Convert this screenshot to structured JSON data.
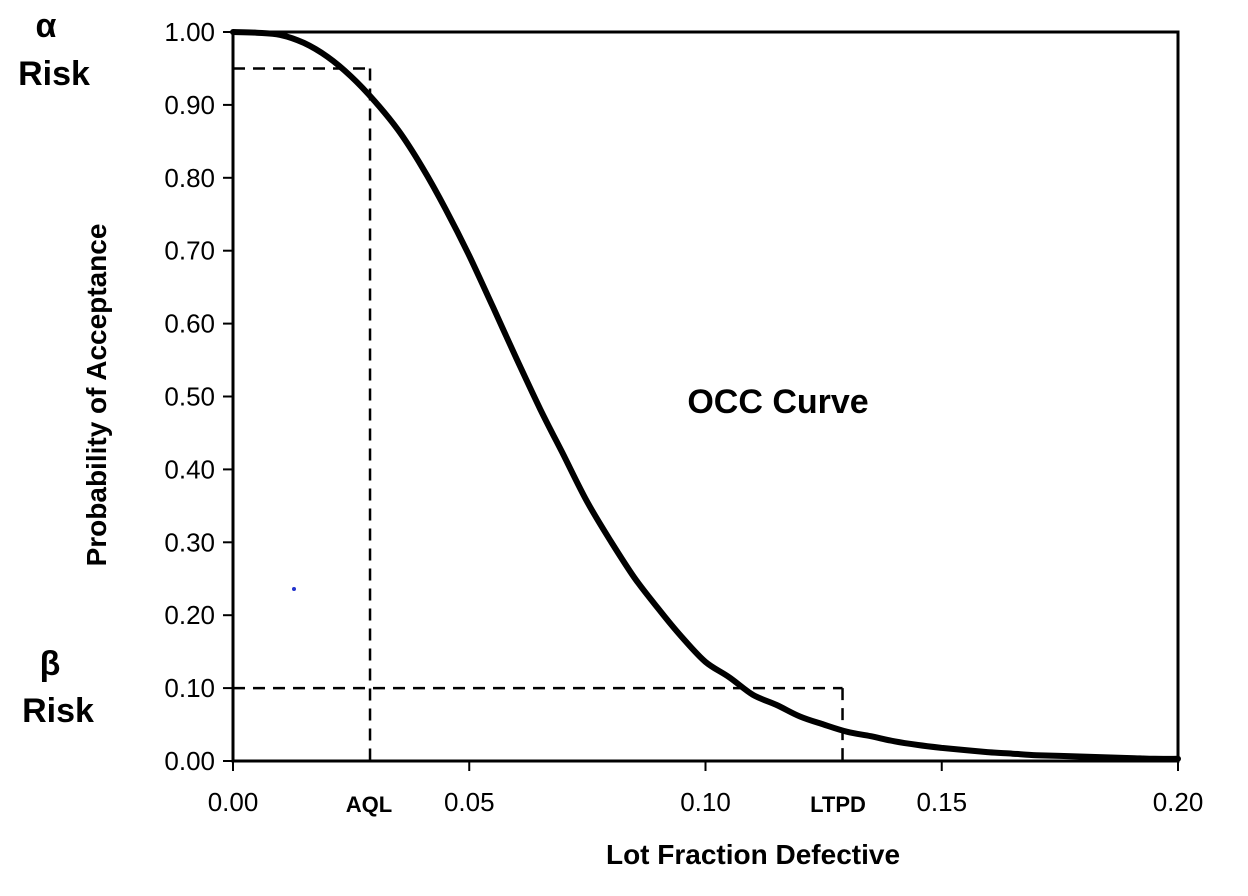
{
  "chart_data": {
    "type": "line",
    "title": "",
    "xlabel": "Lot Fraction Defective",
    "ylabel": "Probability  of Acceptance",
    "xlim": [
      0,
      0.2
    ],
    "ylim": [
      0,
      1
    ],
    "x_ticks": [
      "0.00",
      "0.05",
      "0.10",
      "0.15",
      "0.20"
    ],
    "y_ticks": [
      "0.00",
      "0.10",
      "0.20",
      "0.30",
      "0.40",
      "0.50",
      "0.60",
      "0.70",
      "0.80",
      "0.90",
      "1.00"
    ],
    "grid": false,
    "series": [
      {
        "name": "OCC Curve",
        "x": [
          0,
          0.005,
          0.01,
          0.015,
          0.02,
          0.025,
          0.03,
          0.035,
          0.04,
          0.045,
          0.05,
          0.055,
          0.06,
          0.065,
          0.07,
          0.075,
          0.08,
          0.085,
          0.09,
          0.095,
          0.1,
          0.105,
          0.11,
          0.115,
          0.12,
          0.125,
          0.13,
          0.135,
          0.14,
          0.145,
          0.15,
          0.155,
          0.16,
          0.165,
          0.17,
          0.175,
          0.18,
          0.185,
          0.19,
          0.195,
          0.2
        ],
        "y": [
          1.0,
          0.999,
          0.996,
          0.985,
          0.966,
          0.939,
          0.905,
          0.865,
          0.815,
          0.757,
          0.693,
          0.623,
          0.552,
          0.483,
          0.419,
          0.355,
          0.301,
          0.251,
          0.209,
          0.17,
          0.136,
          0.115,
          0.091,
          0.077,
          0.061,
          0.05,
          0.04,
          0.034,
          0.027,
          0.022,
          0.018,
          0.015,
          0.012,
          0.01,
          0.008,
          0.007,
          0.006,
          0.005,
          0.004,
          0.003,
          0.003
        ]
      }
    ],
    "annotations": {
      "curve_label": "OCC Curve",
      "aql": {
        "label": "AQL",
        "x": 0.029,
        "y": 0.95
      },
      "ltpd": {
        "label": "LTPD",
        "x": 0.129,
        "y": 0.1
      },
      "alpha": {
        "symbol": "α",
        "word": "Risk"
      },
      "beta": {
        "symbol": "β",
        "word": "Risk"
      }
    }
  }
}
